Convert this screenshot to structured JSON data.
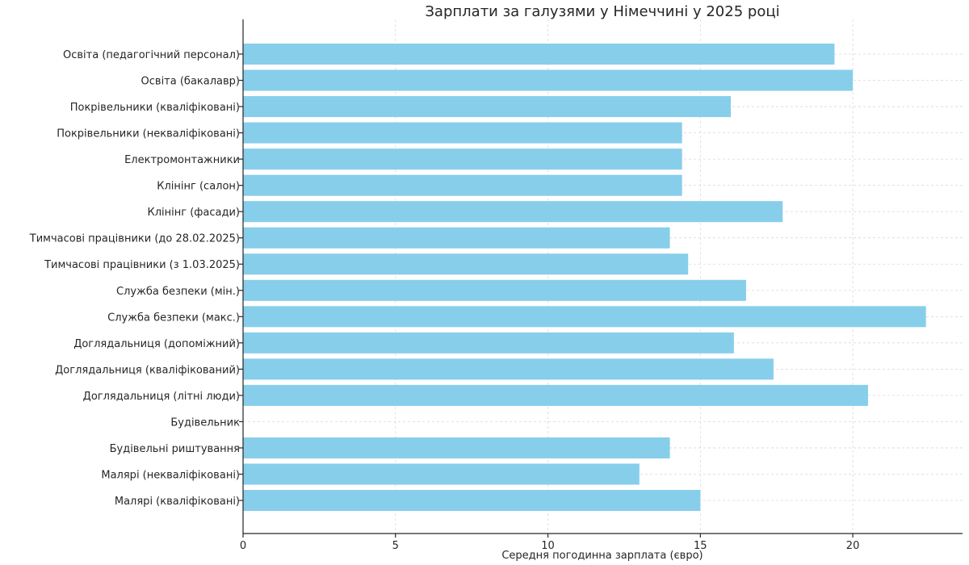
{
  "chart_data": {
    "type": "bar",
    "orientation": "horizontal",
    "title": "Зарплати за галузями у Німеччині у 2025 році",
    "xlabel": "Середня погодинна зарплата (євро)",
    "ylabel": "",
    "xlim": [
      0,
      23.6
    ],
    "xticks": [
      0,
      5,
      10,
      15,
      20
    ],
    "grid": true,
    "bar_color": "#87CEEB",
    "categories": [
      "Освіта (педагогічний персонал)",
      "Освіта (бакалавр)",
      "Покрівельники (кваліфіковані)",
      "Покрівельники (некваліфіковані)",
      "Електромонтажники",
      "Клінінг (салон)",
      "Клінінг (фасади)",
      "Тимчасові працівники (до 28.02.2025)",
      "Тимчасові працівники (з 1.03.2025)",
      "Служба безпеки (мін.)",
      "Служба безпеки (макс.)",
      "Доглядальниця (допоміжний)",
      "Доглядальниця (кваліфікований)",
      "Доглядальниця (літні люди)",
      "Будівельник",
      "Будівельні риштування",
      "Малярі (некваліфіковані)",
      "Малярі (кваліфіковані)"
    ],
    "values": [
      19.4,
      20.0,
      16.0,
      14.4,
      14.4,
      14.4,
      17.7,
      14.0,
      14.6,
      16.5,
      22.4,
      16.1,
      17.4,
      20.5,
      0,
      14.0,
      13.0,
      15.0
    ]
  }
}
